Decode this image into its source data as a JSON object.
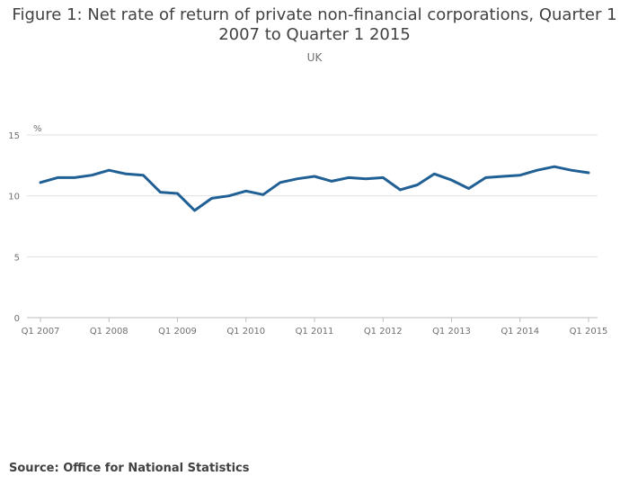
{
  "header": {
    "title": "Figure 1: Net rate of return of private non-financial corporations, Quarter 1 2007 to Quarter 1 2015",
    "subtitle": "UK"
  },
  "footer": {
    "source": "Source: Office for National Statistics"
  },
  "colors": {
    "series": "#206095",
    "gridline": "#e0e0e0",
    "axis": "#bebebe",
    "text": "#414042",
    "muted": "#707071"
  },
  "chart_data": {
    "type": "line",
    "title": "Figure 1: Net rate of return of private non-financial corporations, Quarter 1 2007 to Quarter 1 2015",
    "subtitle": "UK",
    "ylabel": "%",
    "ylim": [
      0,
      15
    ],
    "yticks": [
      0,
      5,
      10,
      15
    ],
    "grid": true,
    "x_tick_labels": [
      "Q1 2007",
      "Q1 2008",
      "Q1 2009",
      "Q1 2010",
      "Q1 2011",
      "Q1 2012",
      "Q1 2013",
      "Q1 2014",
      "Q1 2015"
    ],
    "x_tick_every": 4,
    "x": [
      "Q1 2007",
      "Q2 2007",
      "Q3 2007",
      "Q4 2007",
      "Q1 2008",
      "Q2 2008",
      "Q3 2008",
      "Q4 2008",
      "Q1 2009",
      "Q2 2009",
      "Q3 2009",
      "Q4 2009",
      "Q1 2010",
      "Q2 2010",
      "Q3 2010",
      "Q4 2010",
      "Q1 2011",
      "Q2 2011",
      "Q3 2011",
      "Q4 2011",
      "Q1 2012",
      "Q2 2012",
      "Q3 2012",
      "Q4 2012",
      "Q1 2013",
      "Q2 2013",
      "Q3 2013",
      "Q4 2013",
      "Q1 2014",
      "Q2 2014",
      "Q3 2014",
      "Q4 2014",
      "Q1 2015"
    ],
    "series": [
      {
        "values": [
          11.1,
          11.5,
          11.5,
          11.7,
          12.1,
          11.8,
          11.7,
          10.3,
          10.2,
          8.8,
          9.8,
          10.0,
          10.4,
          10.1,
          11.1,
          11.4,
          11.6,
          11.2,
          11.5,
          11.4,
          11.5,
          10.5,
          10.9,
          11.8,
          11.3,
          10.6,
          11.5,
          11.6,
          11.7,
          12.1,
          12.4,
          12.1,
          11.9
        ]
      }
    ]
  }
}
